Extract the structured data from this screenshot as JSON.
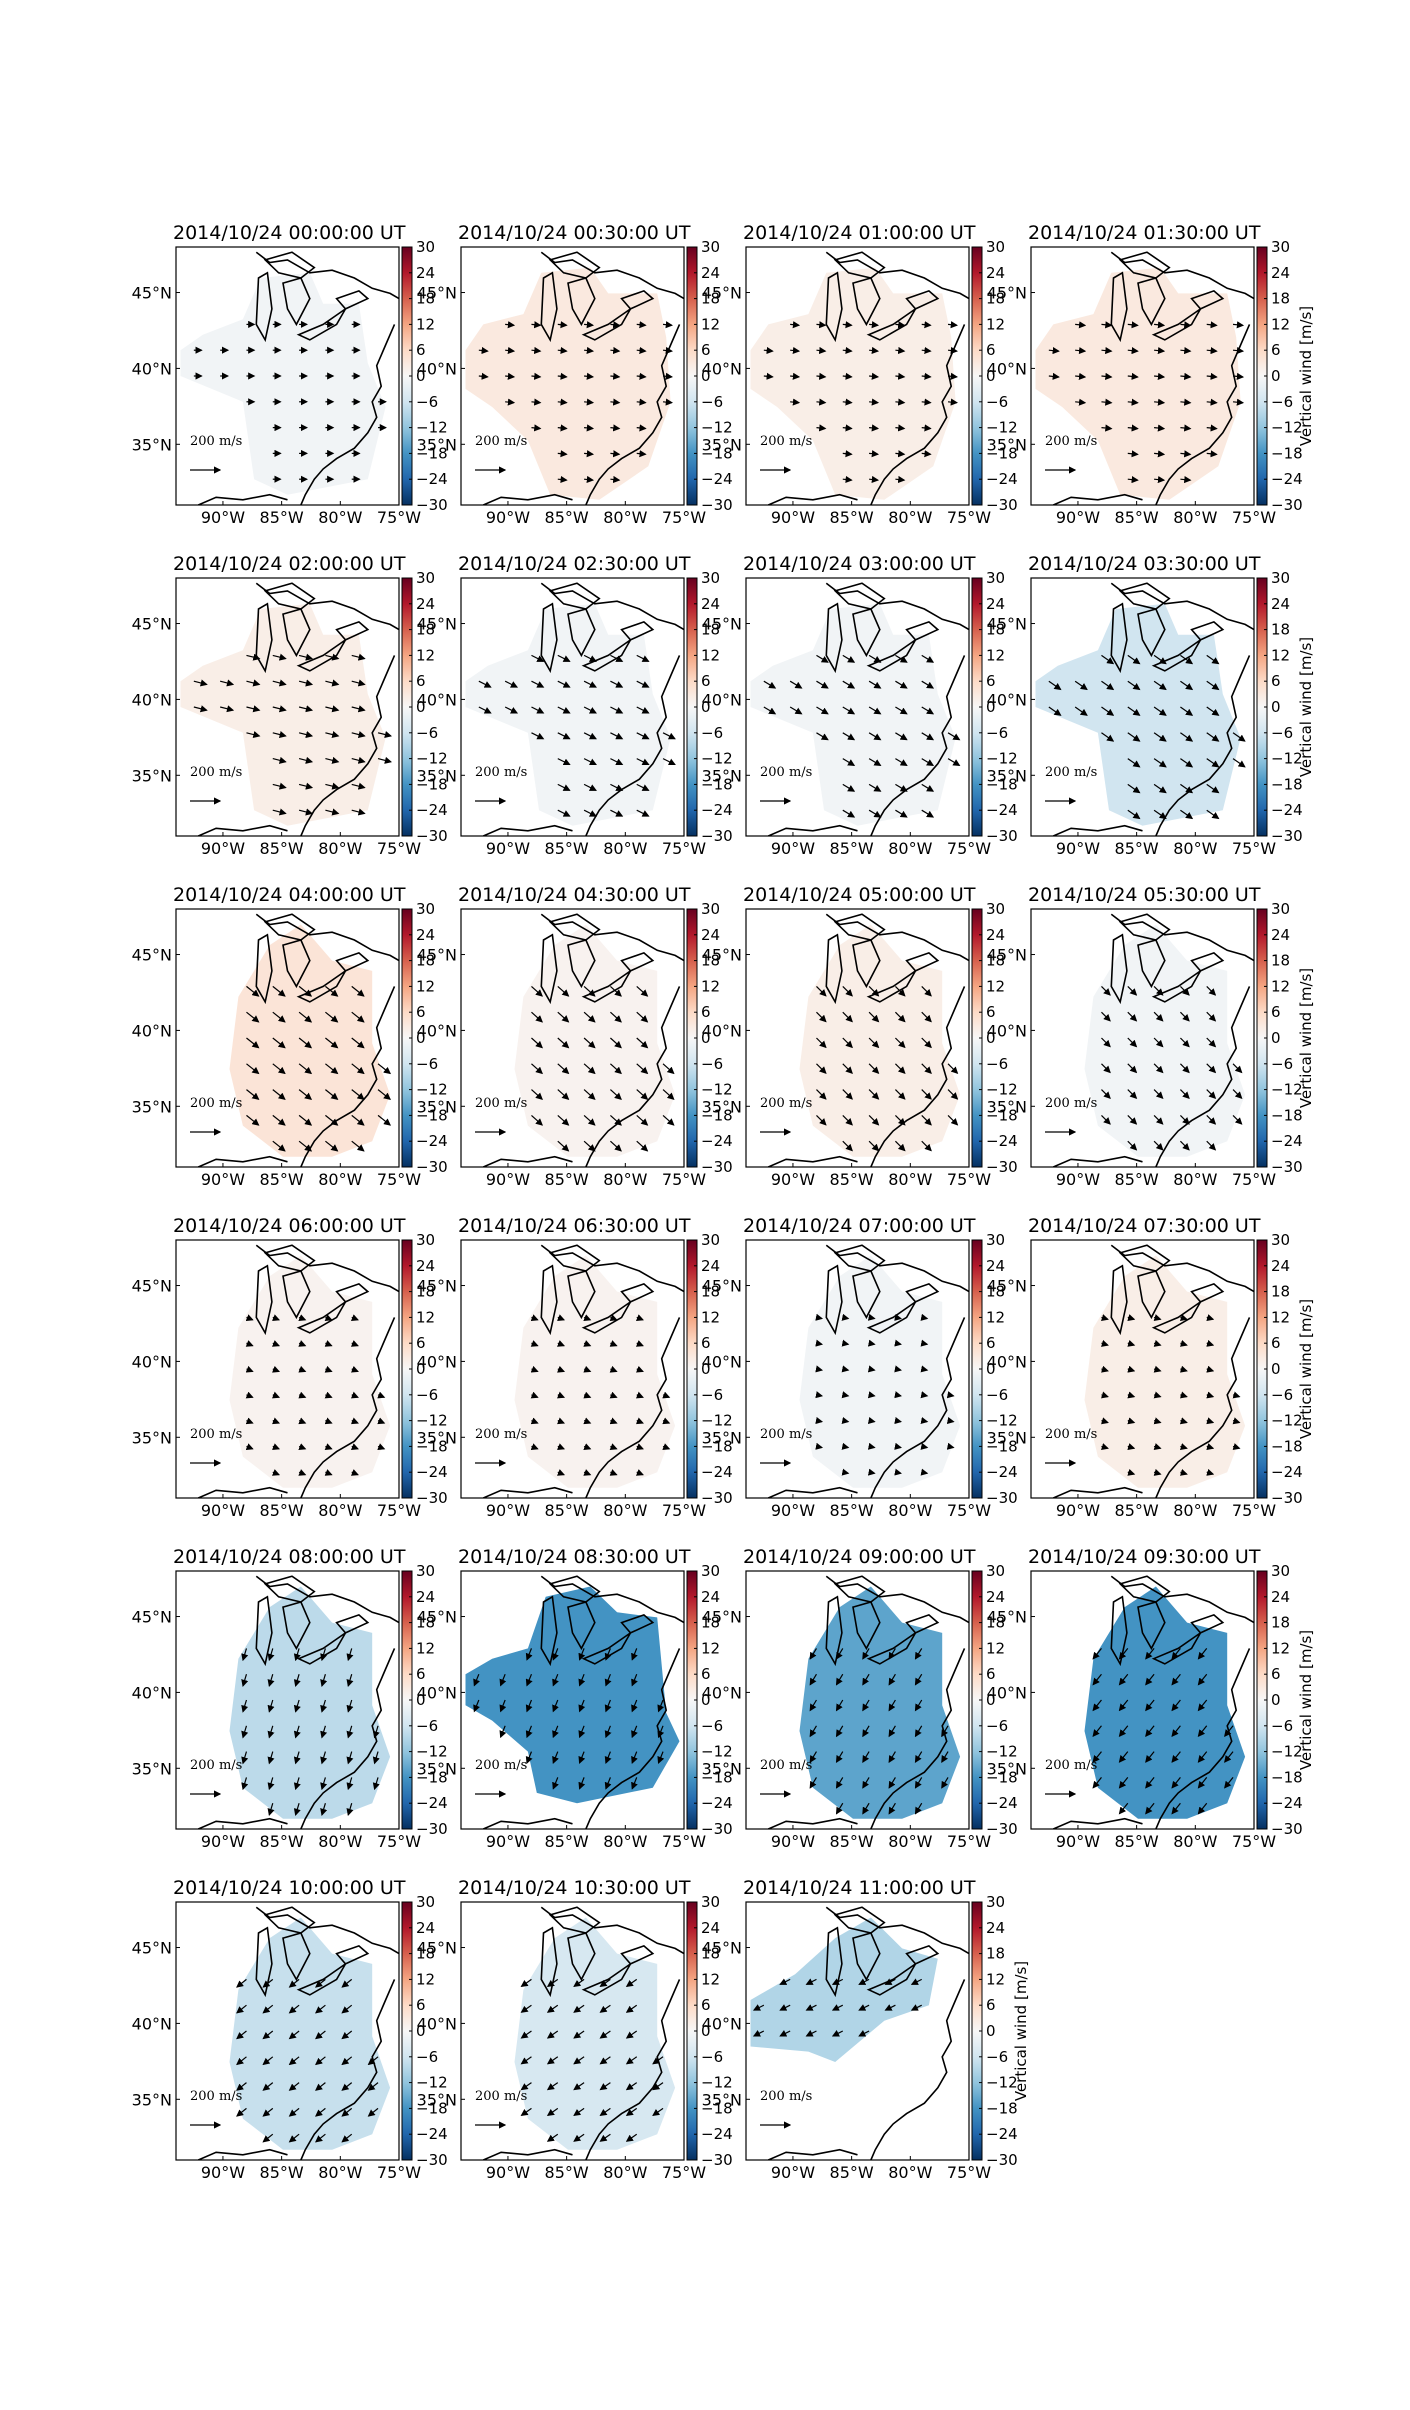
{
  "figure": {
    "rows": 6,
    "cols": 4
  },
  "chart_data": {
    "type": "heatmap",
    "xlabel": "",
    "ylabel": "",
    "x_ticks": [
      "90°W",
      "85°W",
      "80°W",
      "75°W"
    ],
    "y_ticks": [
      "45°N",
      "40°N",
      "35°N"
    ],
    "map_extent": {
      "lon": [
        -94,
        -75
      ],
      "lat": [
        31,
        48
      ]
    },
    "colorbar": {
      "ticks": [
        30,
        24,
        18,
        12,
        6,
        0,
        -6,
        -12,
        -18,
        -24,
        -30
      ],
      "vmin": -30,
      "vmax": 30,
      "colormap": "RdBu_r",
      "label": "Vertical wind [m/s]"
    },
    "scale_arrow": {
      "value": "200",
      "unit_num": "m",
      "unit_den": "s"
    },
    "panels": [
      {
        "title": "2014/10/24 00:00:00 UT",
        "vertical_wind": -1,
        "region": "A",
        "arrow_dir": [
          1,
          0
        ],
        "arrow_len": 0.35
      },
      {
        "title": "2014/10/24 00:30:00 UT",
        "vertical_wind": 3,
        "region": "B",
        "arrow_dir": [
          1,
          0.1
        ],
        "arrow_len": 0.4
      },
      {
        "title": "2014/10/24 01:00:00 UT",
        "vertical_wind": 2,
        "region": "B",
        "arrow_dir": [
          1,
          0.1
        ],
        "arrow_len": 0.4
      },
      {
        "title": "2014/10/24 01:30:00 UT",
        "vertical_wind": 3,
        "region": "B",
        "arrow_dir": [
          1,
          0.1
        ],
        "arrow_len": 0.45
      },
      {
        "title": "2014/10/24 02:00:00 UT",
        "vertical_wind": 2,
        "region": "A",
        "arrow_dir": [
          1,
          0.25
        ],
        "arrow_len": 0.6
      },
      {
        "title": "2014/10/24 02:30:00 UT",
        "vertical_wind": -1,
        "region": "A",
        "arrow_dir": [
          1,
          0.5
        ],
        "arrow_len": 0.6
      },
      {
        "title": "2014/10/24 03:00:00 UT",
        "vertical_wind": -1,
        "region": "A",
        "arrow_dir": [
          1,
          0.6
        ],
        "arrow_len": 0.6
      },
      {
        "title": "2014/10/24 03:30:00 UT",
        "vertical_wind": -6,
        "region": "A",
        "arrow_dir": [
          1,
          0.7
        ],
        "arrow_len": 0.65
      },
      {
        "title": "2014/10/24 04:00:00 UT",
        "vertical_wind": 4,
        "region": "C",
        "arrow_dir": [
          1,
          0.8
        ],
        "arrow_len": 0.7
      },
      {
        "title": "2014/10/24 04:30:00 UT",
        "vertical_wind": 1,
        "region": "C",
        "arrow_dir": [
          1,
          0.9
        ],
        "arrow_len": 0.65
      },
      {
        "title": "2014/10/24 05:00:00 UT",
        "vertical_wind": 2,
        "region": "C",
        "arrow_dir": [
          1,
          1
        ],
        "arrow_len": 0.6
      },
      {
        "title": "2014/10/24 05:30:00 UT",
        "vertical_wind": -1,
        "region": "C",
        "arrow_dir": [
          1,
          1
        ],
        "arrow_len": 0.55
      },
      {
        "title": "2014/10/24 06:00:00 UT",
        "vertical_wind": 1,
        "region": "C",
        "arrow_dir": [
          1,
          0.4
        ],
        "arrow_len": 0.3
      },
      {
        "title": "2014/10/24 06:30:00 UT",
        "vertical_wind": 1,
        "region": "C",
        "arrow_dir": [
          1,
          0.4
        ],
        "arrow_len": 0.3
      },
      {
        "title": "2014/10/24 07:00:00 UT",
        "vertical_wind": -1,
        "region": "C",
        "arrow_dir": [
          1,
          0.2
        ],
        "arrow_len": 0.25
      },
      {
        "title": "2014/10/24 07:30:00 UT",
        "vertical_wind": 2,
        "region": "C",
        "arrow_dir": [
          1,
          0.3
        ],
        "arrow_len": 0.3
      },
      {
        "title": "2014/10/24 08:00:00 UT",
        "vertical_wind": -8,
        "region": "C",
        "arrow_dir": [
          -0.3,
          1
        ],
        "arrow_len": 0.55
      },
      {
        "title": "2014/10/24 08:30:00 UT",
        "vertical_wind": -18,
        "region": "D",
        "arrow_dir": [
          -0.4,
          1
        ],
        "arrow_len": 0.55
      },
      {
        "title": "2014/10/24 09:00:00 UT",
        "vertical_wind": -16,
        "region": "C",
        "arrow_dir": [
          -0.6,
          1
        ],
        "arrow_len": 0.55
      },
      {
        "title": "2014/10/24 09:30:00 UT",
        "vertical_wind": -18,
        "region": "C",
        "arrow_dir": [
          -0.8,
          1
        ],
        "arrow_len": 0.6
      },
      {
        "title": "2014/10/24 10:00:00 UT",
        "vertical_wind": -7,
        "region": "C",
        "arrow_dir": [
          -1,
          0.8
        ],
        "arrow_len": 0.55
      },
      {
        "title": "2014/10/24 10:30:00 UT",
        "vertical_wind": -5,
        "region": "C",
        "arrow_dir": [
          -1,
          0.7
        ],
        "arrow_len": 0.55
      },
      {
        "title": "2014/10/24 11:00:00 UT",
        "vertical_wind": -9,
        "region": "E",
        "arrow_dir": [
          -1,
          0.5
        ],
        "arrow_len": 0.5
      }
    ]
  }
}
